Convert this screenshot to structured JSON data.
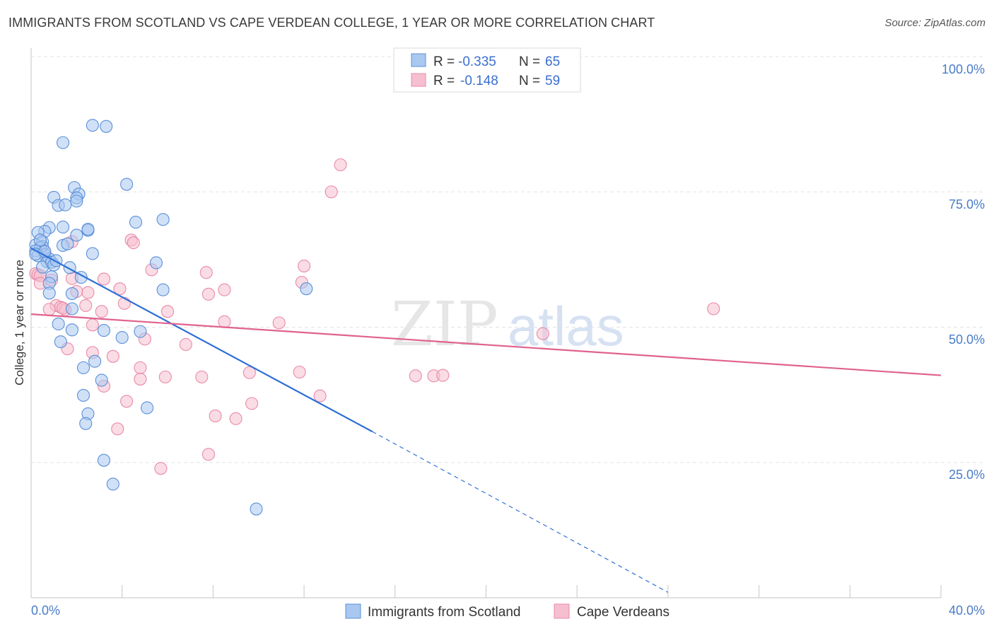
{
  "title": "IMMIGRANTS FROM SCOTLAND VS CAPE VERDEAN COLLEGE, 1 YEAR OR MORE CORRELATION CHART",
  "source": "Source: ZipAtlas.com",
  "watermark": {
    "zip": "ZIP",
    "atlas": "atlas"
  },
  "colors": {
    "scotland_fill": "#a9c8f0",
    "scotland_stroke": "#5b8fd8",
    "scotland_line": "#2e6fd6",
    "cape_fill": "#f6bfd0",
    "cape_stroke": "#e98aa8",
    "cape_line": "#e0628e",
    "tick_label": "#4a7cc7",
    "grid": "#e3e3e3"
  },
  "stats": [
    {
      "series": "Immigrants from Scotland",
      "r_label": "R =",
      "r_value": "-0.335",
      "n_label": "N =",
      "n_value": "65"
    },
    {
      "series": "Cape Verdeans",
      "r_label": "R =",
      "r_value": "-0.148",
      "n_label": "N =",
      "n_value": "59"
    }
  ],
  "chart_data": {
    "type": "scatter",
    "title": "IMMIGRANTS FROM SCOTLAND VS CAPE VERDEAN COLLEGE, 1 YEAR OR MORE CORRELATION CHART",
    "xlabel": "",
    "ylabel": "College, 1 year or more",
    "xlim": [
      0,
      40
    ],
    "ylim": [
      0,
      100
    ],
    "x_tick_labels": [
      {
        "value": 0,
        "label": "0.0%"
      },
      {
        "value": 40,
        "label": "40.0%"
      }
    ],
    "y_tick_labels": [
      {
        "value": 100,
        "label": "100.0%"
      },
      {
        "value": 75,
        "label": "75.0%"
      },
      {
        "value": 50,
        "label": "50.0%"
      },
      {
        "value": 25,
        "label": "25.0%"
      }
    ],
    "x_minor_ticks": [
      4,
      8,
      12,
      16,
      20,
      24,
      28,
      32,
      36,
      40
    ],
    "grid": true,
    "legend_position": "bottom-center",
    "series": [
      {
        "name": "Immigrants from Scotland",
        "points": [
          [
            2.7,
            87.3
          ],
          [
            3.3,
            87.1
          ],
          [
            1.4,
            84.1
          ],
          [
            4.2,
            76.4
          ],
          [
            1.9,
            75.8
          ],
          [
            1.0,
            74.0
          ],
          [
            2.1,
            74.6
          ],
          [
            2.0,
            73.9
          ],
          [
            2.0,
            73.3
          ],
          [
            1.2,
            72.5
          ],
          [
            1.5,
            72.6
          ],
          [
            5.8,
            69.9
          ],
          [
            4.6,
            69.4
          ],
          [
            0.8,
            68.4
          ],
          [
            1.4,
            68.5
          ],
          [
            2.5,
            67.9
          ],
          [
            0.6,
            67.7
          ],
          [
            2.5,
            68.1
          ],
          [
            0.3,
            67.5
          ],
          [
            2.0,
            67.0
          ],
          [
            0.5,
            65.8
          ],
          [
            0.2,
            65.2
          ],
          [
            0.5,
            64.9
          ],
          [
            1.4,
            65.1
          ],
          [
            1.6,
            65.4
          ],
          [
            0.4,
            64.7
          ],
          [
            0.2,
            64.1
          ],
          [
            0.6,
            63.4
          ],
          [
            0.3,
            63.2
          ],
          [
            2.7,
            63.6
          ],
          [
            0.8,
            62.6
          ],
          [
            0.7,
            62.1
          ],
          [
            0.5,
            61.1
          ],
          [
            5.5,
            61.9
          ],
          [
            1.7,
            61.0
          ],
          [
            2.2,
            59.2
          ],
          [
            0.9,
            59.3
          ],
          [
            0.8,
            58.1
          ],
          [
            5.8,
            56.9
          ],
          [
            12.1,
            57.1
          ],
          [
            0.8,
            56.3
          ],
          [
            1.8,
            56.2
          ],
          [
            1.8,
            53.4
          ],
          [
            1.2,
            50.6
          ],
          [
            1.8,
            49.5
          ],
          [
            3.2,
            49.4
          ],
          [
            4.8,
            49.2
          ],
          [
            4.0,
            48.1
          ],
          [
            1.3,
            47.3
          ],
          [
            2.8,
            43.7
          ],
          [
            2.3,
            42.5
          ],
          [
            3.1,
            40.2
          ],
          [
            2.3,
            37.4
          ],
          [
            5.1,
            35.1
          ],
          [
            2.5,
            34.0
          ],
          [
            2.4,
            32.2
          ],
          [
            3.2,
            25.4
          ],
          [
            3.6,
            21.0
          ],
          [
            9.9,
            16.4
          ],
          [
            0.2,
            63.5
          ],
          [
            0.6,
            64.0
          ],
          [
            0.9,
            62.0
          ],
          [
            1.0,
            61.5
          ],
          [
            0.4,
            66.1
          ],
          [
            1.1,
            62.3
          ]
        ],
        "trend": {
          "x_start": 0.0,
          "y_start": 64.6,
          "x_end": 15.0,
          "y_end": 30.7,
          "dashed_to_x": 28.0,
          "dashed_to_y": 1.0
        }
      },
      {
        "name": "Cape Verdeans",
        "points": [
          [
            13.6,
            80.0
          ],
          [
            13.2,
            75.0
          ],
          [
            4.4,
            66.1
          ],
          [
            4.5,
            65.6
          ],
          [
            1.8,
            65.8
          ],
          [
            0.6,
            63.9
          ],
          [
            12.0,
            61.3
          ],
          [
            5.3,
            60.6
          ],
          [
            7.7,
            60.1
          ],
          [
            0.2,
            59.9
          ],
          [
            0.3,
            59.7
          ],
          [
            0.4,
            59.5
          ],
          [
            3.2,
            58.9
          ],
          [
            11.9,
            58.3
          ],
          [
            0.4,
            58.1
          ],
          [
            1.8,
            59.0
          ],
          [
            3.9,
            57.1
          ],
          [
            8.5,
            56.9
          ],
          [
            2.0,
            56.6
          ],
          [
            2.5,
            56.4
          ],
          [
            7.8,
            56.1
          ],
          [
            4.1,
            54.4
          ],
          [
            2.4,
            54.0
          ],
          [
            1.1,
            54.0
          ],
          [
            1.3,
            53.7
          ],
          [
            0.8,
            53.3
          ],
          [
            1.5,
            53.2
          ],
          [
            6.0,
            52.9
          ],
          [
            3.1,
            52.9
          ],
          [
            30.0,
            53.4
          ],
          [
            8.5,
            51.0
          ],
          [
            10.9,
            50.8
          ],
          [
            2.7,
            50.4
          ],
          [
            22.5,
            48.8
          ],
          [
            5.0,
            47.8
          ],
          [
            6.8,
            46.8
          ],
          [
            1.6,
            46.0
          ],
          [
            2.7,
            45.3
          ],
          [
            3.6,
            44.6
          ],
          [
            4.8,
            42.5
          ],
          [
            11.8,
            41.7
          ],
          [
            9.6,
            41.6
          ],
          [
            5.9,
            40.8
          ],
          [
            7.5,
            40.8
          ],
          [
            4.8,
            40.4
          ],
          [
            16.9,
            41.0
          ],
          [
            17.7,
            41.0
          ],
          [
            18.1,
            41.1
          ],
          [
            3.2,
            39.1
          ],
          [
            12.7,
            37.3
          ],
          [
            4.2,
            36.3
          ],
          [
            9.7,
            35.9
          ],
          [
            8.1,
            33.6
          ],
          [
            9.0,
            33.1
          ],
          [
            3.8,
            31.2
          ],
          [
            7.8,
            26.5
          ],
          [
            5.7,
            23.9
          ],
          [
            1.4,
            53.5
          ],
          [
            0.9,
            58.7
          ]
        ],
        "trend": {
          "x_start": 0.0,
          "y_start": 52.4,
          "x_end": 40.0,
          "y_end": 41.1
        }
      }
    ]
  }
}
